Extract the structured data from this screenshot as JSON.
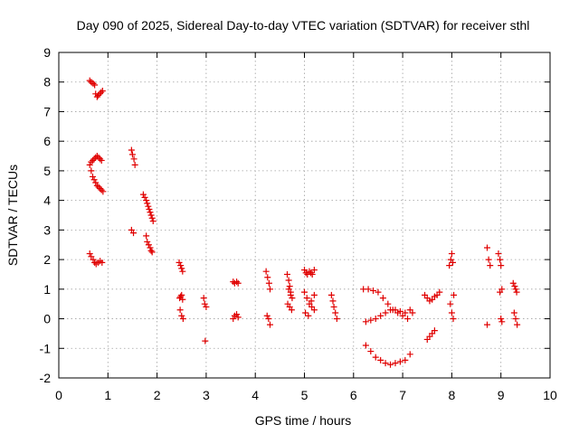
{
  "chart_data": {
    "type": "scatter",
    "title": "Day 090 of 2025, Sidereal Day-to-day VTEC variation (SDTVAR) for receiver sthl",
    "xlabel": "GPS time / hours",
    "ylabel": "SDTVAR / TECUs",
    "xlim": [
      0,
      10
    ],
    "ylim": [
      -2,
      9
    ],
    "xticks": [
      "0",
      "1",
      "2",
      "3",
      "4",
      "5",
      "6",
      "7",
      "8",
      "9",
      "10"
    ],
    "yticks": [
      "-2",
      "-1",
      "0",
      "1",
      "2",
      "3",
      "4",
      "5",
      "6",
      "7",
      "8",
      "9"
    ],
    "grid": true,
    "marker": "plus",
    "marker_color": "#e00000",
    "series": [
      {
        "x": [
          0.63,
          0.66,
          0.7,
          0.73,
          0.75,
          0.78,
          0.8,
          0.83,
          0.86,
          0.89,
          0.63,
          0.66,
          0.69,
          0.72,
          0.75,
          0.78,
          0.81,
          0.84,
          0.87,
          0.66,
          0.69,
          0.72,
          0.75,
          0.78,
          0.81,
          0.84,
          0.87,
          0.9,
          0.63,
          0.66,
          0.7,
          0.73,
          0.76,
          0.8,
          0.84,
          0.88,
          1.48,
          1.5,
          1.53,
          1.55,
          1.48,
          1.52,
          1.72,
          1.75,
          1.78,
          1.8,
          1.82,
          1.84,
          1.86,
          1.88,
          1.9,
          1.92,
          1.78,
          1.8,
          1.83,
          1.86,
          1.88,
          1.9,
          2.45,
          2.48,
          2.5,
          2.52,
          2.46,
          2.48,
          2.5,
          2.52,
          2.47,
          2.5,
          2.53,
          2.95,
          2.97,
          3.0,
          2.98,
          3.55,
          3.58,
          3.62,
          3.65,
          3.55,
          3.58,
          3.62,
          3.65,
          4.22,
          4.25,
          4.28,
          4.3,
          4.24,
          4.27,
          4.3,
          4.65,
          4.68,
          4.7,
          4.72,
          4.75,
          4.66,
          4.7,
          4.74,
          4.68,
          4.72,
          5.0,
          5.03,
          5.06,
          5.1,
          5.13,
          5.16,
          5.2,
          5.0,
          5.05,
          5.1,
          5.15,
          5.2,
          5.02,
          5.08,
          5.14,
          5.2,
          5.55,
          5.58,
          5.6,
          5.63,
          5.66,
          6.2,
          6.3,
          6.4,
          6.5,
          6.6,
          6.7,
          6.8,
          6.9,
          7.0,
          7.1,
          7.2,
          6.25,
          6.35,
          6.45,
          6.55,
          6.65,
          6.75,
          6.85,
          6.95,
          7.05,
          7.15,
          6.25,
          6.35,
          6.45,
          6.55,
          6.65,
          6.75,
          6.85,
          6.95,
          7.05,
          7.15,
          7.45,
          7.5,
          7.55,
          7.6,
          7.65,
          7.7,
          7.75,
          7.5,
          7.55,
          7.6,
          7.65,
          7.95,
          7.98,
          8.0,
          8.02,
          8.04,
          7.97,
          8.0,
          8.03,
          8.72,
          8.75,
          8.78,
          8.72,
          8.95,
          8.98,
          9.0,
          9.02,
          8.98,
          9.0,
          9.02,
          9.25,
          9.28,
          9.3,
          9.32,
          9.27,
          9.3,
          9.33
        ],
        "y": [
          8.05,
          8.0,
          7.95,
          7.9,
          7.6,
          7.5,
          7.55,
          7.6,
          7.65,
          7.7,
          5.2,
          5.3,
          5.35,
          5.4,
          5.45,
          5.5,
          5.45,
          5.4,
          5.35,
          5.0,
          4.8,
          4.7,
          4.6,
          4.5,
          4.45,
          4.4,
          4.35,
          4.3,
          2.2,
          2.1,
          2.0,
          1.9,
          1.85,
          1.9,
          1.95,
          1.9,
          5.7,
          5.55,
          5.4,
          5.2,
          3.0,
          2.9,
          4.2,
          4.1,
          4.0,
          3.9,
          3.8,
          3.7,
          3.6,
          3.5,
          3.4,
          3.3,
          2.8,
          2.6,
          2.5,
          2.4,
          2.3,
          2.25,
          1.9,
          1.8,
          1.7,
          1.6,
          0.7,
          0.75,
          0.8,
          0.65,
          0.3,
          0.1,
          0.0,
          0.7,
          0.5,
          0.4,
          -0.75,
          1.25,
          1.2,
          1.25,
          1.2,
          0.0,
          0.1,
          0.15,
          0.05,
          1.6,
          1.4,
          1.2,
          1.0,
          0.1,
          0.0,
          -0.2,
          1.5,
          1.3,
          1.1,
          0.9,
          0.7,
          0.5,
          0.4,
          0.3,
          1.0,
          0.8,
          1.65,
          1.55,
          1.5,
          1.6,
          1.55,
          1.5,
          1.65,
          0.9,
          0.7,
          0.5,
          0.4,
          0.3,
          0.2,
          0.1,
          0.6,
          0.8,
          0.8,
          0.6,
          0.4,
          0.2,
          0.0,
          1.0,
          1.0,
          0.95,
          0.9,
          0.7,
          0.5,
          0.3,
          0.2,
          0.1,
          0.0,
          0.2,
          -0.1,
          -0.05,
          0.0,
          0.1,
          0.2,
          0.3,
          0.3,
          0.25,
          0.2,
          0.3,
          -0.9,
          -1.1,
          -1.3,
          -1.4,
          -1.5,
          -1.55,
          -1.5,
          -1.45,
          -1.4,
          -1.2,
          0.8,
          0.7,
          0.6,
          0.65,
          0.75,
          0.8,
          0.9,
          -0.7,
          -0.6,
          -0.5,
          -0.4,
          1.8,
          2.0,
          2.2,
          1.9,
          0.8,
          0.5,
          0.2,
          0.0,
          2.4,
          2.0,
          1.8,
          -0.2,
          2.2,
          2.0,
          1.8,
          1.0,
          0.9,
          0.0,
          -0.1,
          1.2,
          1.1,
          1.0,
          0.9,
          0.2,
          0.0,
          -0.2
        ]
      }
    ]
  }
}
